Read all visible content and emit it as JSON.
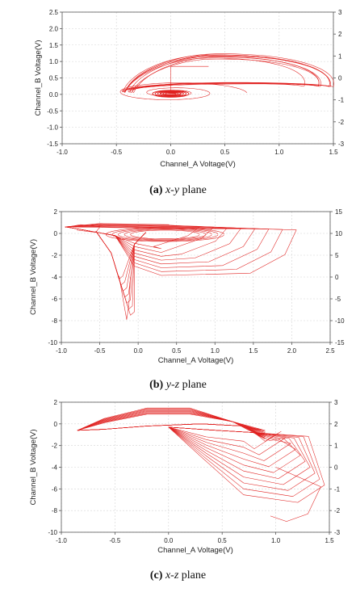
{
  "chart_data": [
    {
      "type": "line",
      "xlabel": "Channel_A Voltage(V)",
      "ylabel": "Channel_B Voltage(V)",
      "xlim": [
        -1.0,
        1.5
      ],
      "ylim": [
        -1.5,
        2.5
      ],
      "y2lim": [
        -3,
        3
      ],
      "x_ticks": [
        "-1.0",
        "-0.5",
        "0.0",
        "0.5",
        "1.0",
        "1.5"
      ],
      "y_ticks": [
        "-1.5",
        "-1.0",
        "-0.5",
        "0.0",
        "0.5",
        "1.0",
        "1.5",
        "2.0",
        "2.5"
      ],
      "y2_ticks": [
        "-3",
        "-2",
        "-1",
        "0",
        "1",
        "2",
        "3"
      ],
      "grid": true,
      "series_color": "#e0201f",
      "caption_label": "(a)",
      "caption_plane": "x-y",
      "caption_suffix": "plane"
    },
    {
      "type": "line",
      "xlabel": "Channel_A Voltage(V)",
      "ylabel": "Channel_B Voltage(V)",
      "xlim": [
        -1.0,
        2.5
      ],
      "ylim": [
        -10,
        2
      ],
      "y2lim": [
        -15,
        15
      ],
      "x_ticks": [
        "-1.0",
        "-0.5",
        "0.0",
        "0.5",
        "1.0",
        "1.5",
        "2.0",
        "2.5"
      ],
      "y_ticks": [
        "-10",
        "-8",
        "-6",
        "-4",
        "-2",
        "0",
        "2"
      ],
      "y2_ticks": [
        "-15",
        "-10",
        "-5",
        "0",
        "5",
        "10",
        "15"
      ],
      "grid": true,
      "series_color": "#e0201f",
      "caption_label": "(b)",
      "caption_plane": "y-z",
      "caption_suffix": "plane"
    },
    {
      "type": "line",
      "xlabel": "Channel_A Voltage(V)",
      "ylabel": "Channel_B Voltage(V)",
      "xlim": [
        -1.0,
        1.5
      ],
      "ylim": [
        -10,
        2
      ],
      "y2lim": [
        -3,
        3
      ],
      "x_ticks": [
        "-1.0",
        "-0.5",
        "0.0",
        "0.5",
        "1.0",
        "1.5"
      ],
      "y_ticks": [
        "-10",
        "-8",
        "-6",
        "-4",
        "-2",
        "0",
        "2"
      ],
      "y2_ticks": [
        "-3",
        "-2",
        "-1",
        "0",
        "1",
        "2",
        "3"
      ],
      "grid": true,
      "series_color": "#e0201f",
      "caption_label": "(c)",
      "caption_plane": "x-z",
      "caption_suffix": "plane"
    }
  ]
}
